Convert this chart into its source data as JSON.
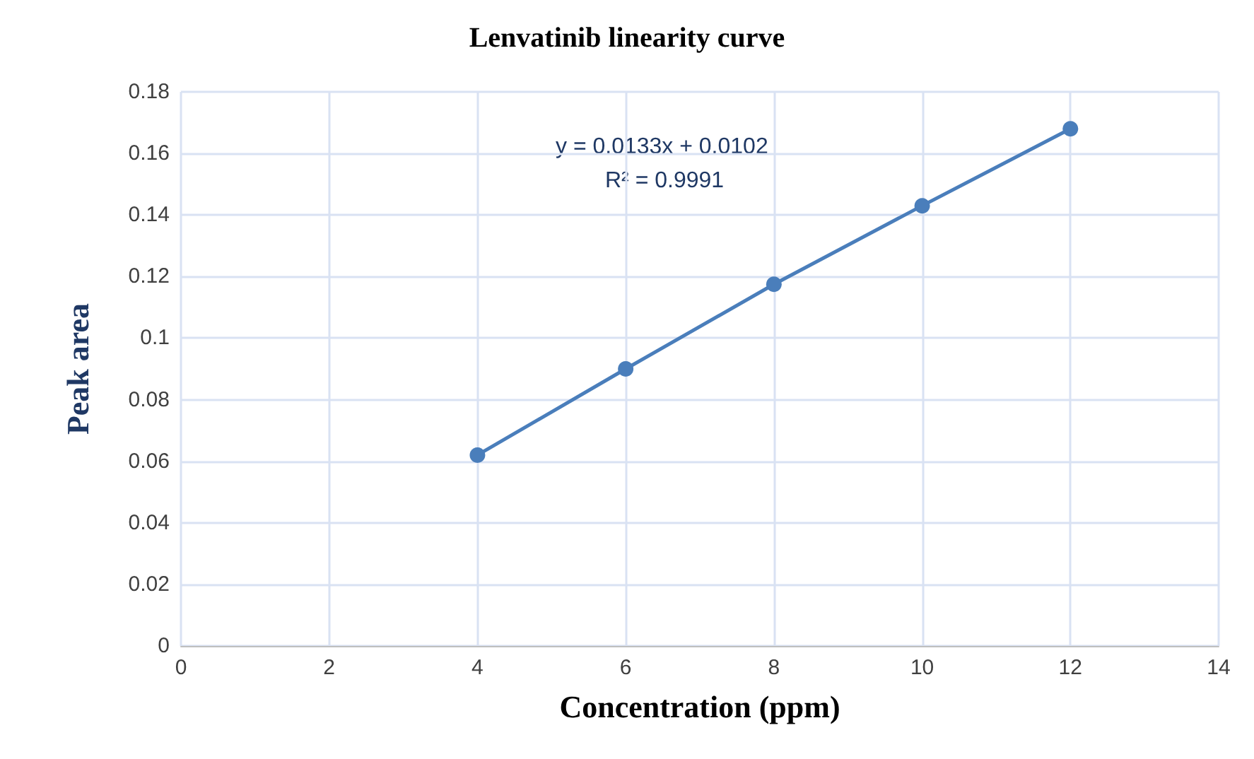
{
  "chart_data": {
    "type": "line",
    "title": "Lenvatinib linearity curve",
    "xlabel": "Concentration (ppm)",
    "ylabel": "Peak area",
    "x": [
      4,
      6,
      8,
      10,
      12
    ],
    "series": [
      {
        "color": "#4a7ebb",
        "values": [
          0.062,
          0.09,
          0.1175,
          0.143,
          0.168
        ]
      }
    ],
    "xlim": [
      0,
      14
    ],
    "xticks": [
      0,
      2,
      4,
      6,
      8,
      10,
      12,
      14
    ],
    "ylim": [
      0,
      0.18
    ],
    "yticks": [
      0,
      0.02,
      0.04,
      0.06,
      0.08,
      0.1,
      0.12,
      0.14,
      0.16,
      0.18
    ],
    "annotations": [
      "y = 0.0133x + 0.0102",
      "R² = 0.9991"
    ],
    "grid": true,
    "marker": "circle",
    "line_style": "solid"
  }
}
